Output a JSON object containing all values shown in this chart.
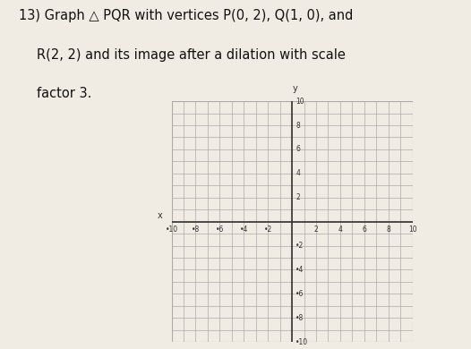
{
  "title_line1": "13) Graph △ PQR with vertices P(0, 2), Q(1, 0), and",
  "title_line2": "R(2, 2) and its image after a dilation with scale",
  "title_line3": "factor 3.",
  "xlim": [
    -10,
    10
  ],
  "ylim": [
    -10,
    10
  ],
  "grid_color": "#aaaaaa",
  "axis_color": "#333333",
  "bg_color": "#ffffff",
  "paper_color": "#f0ece4",
  "text_color": "#111111",
  "title_fontsize": 10.5
}
